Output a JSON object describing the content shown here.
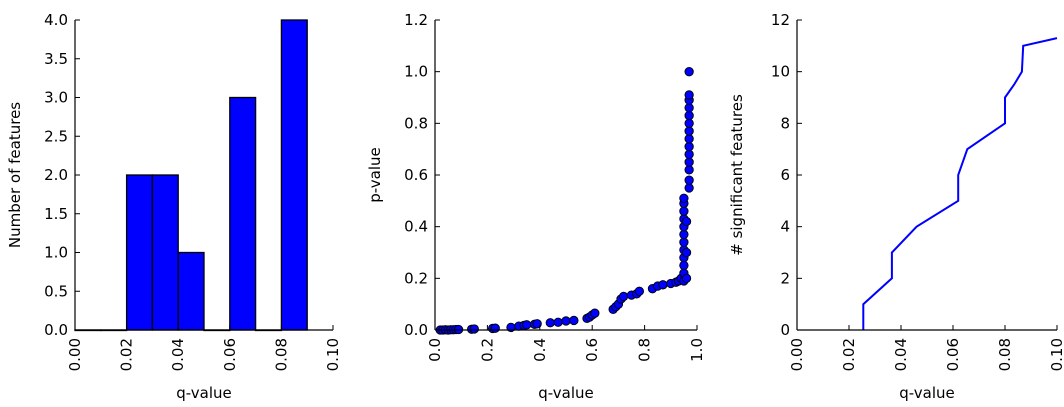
{
  "chart_data": [
    {
      "type": "bar",
      "title": "",
      "xlabel": "q-value",
      "ylabel": "Number of features",
      "xlim": [
        0.0,
        0.1
      ],
      "ylim": [
        0.0,
        4.0
      ],
      "xticks": [
        "0.00",
        "0.02",
        "0.04",
        "0.06",
        "0.08",
        "0.10"
      ],
      "yticks": [
        "0.0",
        "0.5",
        "1.0",
        "1.5",
        "2.0",
        "2.5",
        "3.0",
        "3.5",
        "4.0"
      ],
      "bins": [
        {
          "x0": 0.0,
          "x1": 0.01,
          "value": 0
        },
        {
          "x0": 0.01,
          "x1": 0.02,
          "value": 0
        },
        {
          "x0": 0.02,
          "x1": 0.03,
          "value": 2
        },
        {
          "x0": 0.03,
          "x1": 0.04,
          "value": 2
        },
        {
          "x0": 0.04,
          "x1": 0.05,
          "value": 1
        },
        {
          "x0": 0.05,
          "x1": 0.06,
          "value": 0
        },
        {
          "x0": 0.06,
          "x1": 0.07,
          "value": 3
        },
        {
          "x0": 0.07,
          "x1": 0.08,
          "value": 0
        },
        {
          "x0": 0.08,
          "x1": 0.09,
          "value": 4
        }
      ],
      "color": "#0000ff"
    },
    {
      "type": "scatter",
      "title": "",
      "xlabel": "q-value",
      "ylabel": "p-value",
      "xlim": [
        0.0,
        1.0
      ],
      "ylim": [
        0.0,
        1.2
      ],
      "xticks": [
        "0.0",
        "0.2",
        "0.4",
        "0.6",
        "0.8",
        "1.0"
      ],
      "yticks": [
        "0.0",
        "0.2",
        "0.4",
        "0.6",
        "0.8",
        "1.0",
        "1.2"
      ],
      "color": "#0000ff",
      "points": [
        [
          0.02,
          0.0
        ],
        [
          0.03,
          0.0
        ],
        [
          0.04,
          0.001
        ],
        [
          0.05,
          0.0
        ],
        [
          0.06,
          0.001
        ],
        [
          0.07,
          0.001
        ],
        [
          0.08,
          0.002
        ],
        [
          0.09,
          0.002
        ],
        [
          0.14,
          0.003
        ],
        [
          0.15,
          0.004
        ],
        [
          0.22,
          0.006
        ],
        [
          0.23,
          0.007
        ],
        [
          0.29,
          0.01
        ],
        [
          0.32,
          0.015
        ],
        [
          0.34,
          0.018
        ],
        [
          0.35,
          0.02
        ],
        [
          0.38,
          0.022
        ],
        [
          0.39,
          0.024
        ],
        [
          0.44,
          0.028
        ],
        [
          0.47,
          0.03
        ],
        [
          0.5,
          0.035
        ],
        [
          0.53,
          0.037
        ],
        [
          0.58,
          0.045
        ],
        [
          0.59,
          0.05
        ],
        [
          0.6,
          0.058
        ],
        [
          0.61,
          0.065
        ],
        [
          0.68,
          0.08
        ],
        [
          0.69,
          0.09
        ],
        [
          0.7,
          0.1
        ],
        [
          0.71,
          0.12
        ],
        [
          0.72,
          0.13
        ],
        [
          0.75,
          0.135
        ],
        [
          0.77,
          0.14
        ],
        [
          0.78,
          0.15
        ],
        [
          0.83,
          0.16
        ],
        [
          0.85,
          0.17
        ],
        [
          0.87,
          0.175
        ],
        [
          0.9,
          0.18
        ],
        [
          0.92,
          0.185
        ],
        [
          0.93,
          0.19
        ],
        [
          0.94,
          0.2
        ],
        [
          0.95,
          0.19
        ],
        [
          0.95,
          0.22
        ],
        [
          0.95,
          0.25
        ],
        [
          0.95,
          0.28
        ],
        [
          0.95,
          0.31
        ],
        [
          0.95,
          0.34
        ],
        [
          0.95,
          0.37
        ],
        [
          0.95,
          0.4
        ],
        [
          0.95,
          0.43
        ],
        [
          0.95,
          0.46
        ],
        [
          0.95,
          0.49
        ],
        [
          0.95,
          0.51
        ],
        [
          0.96,
          0.2
        ],
        [
          0.96,
          0.3
        ],
        [
          0.96,
          0.42
        ],
        [
          0.97,
          0.55
        ],
        [
          0.97,
          0.58
        ],
        [
          0.97,
          0.62
        ],
        [
          0.97,
          0.65
        ],
        [
          0.97,
          0.68
        ],
        [
          0.97,
          0.71
        ],
        [
          0.97,
          0.74
        ],
        [
          0.97,
          0.77
        ],
        [
          0.97,
          0.8
        ],
        [
          0.97,
          0.83
        ],
        [
          0.97,
          0.86
        ],
        [
          0.97,
          0.89
        ],
        [
          0.97,
          0.91
        ],
        [
          0.97,
          1.0
        ]
      ]
    },
    {
      "type": "line",
      "title": "",
      "xlabel": "q-value",
      "ylabel": "# significant features",
      "xlim": [
        0.0,
        0.1
      ],
      "ylim": [
        0,
        12
      ],
      "xticks": [
        "0.00",
        "0.02",
        "0.04",
        "0.06",
        "0.08",
        "0.10"
      ],
      "yticks": [
        "0",
        "2",
        "4",
        "6",
        "8",
        "10",
        "12"
      ],
      "color": "#0000ff",
      "points": [
        [
          0.0255,
          0
        ],
        [
          0.0255,
          1
        ],
        [
          0.0365,
          2
        ],
        [
          0.0365,
          3
        ],
        [
          0.046,
          4
        ],
        [
          0.062,
          5
        ],
        [
          0.062,
          6
        ],
        [
          0.0655,
          7
        ],
        [
          0.08,
          8
        ],
        [
          0.08,
          9
        ],
        [
          0.0835,
          9.5
        ],
        [
          0.0865,
          10
        ],
        [
          0.087,
          11
        ],
        [
          0.1,
          11.3
        ]
      ]
    }
  ]
}
